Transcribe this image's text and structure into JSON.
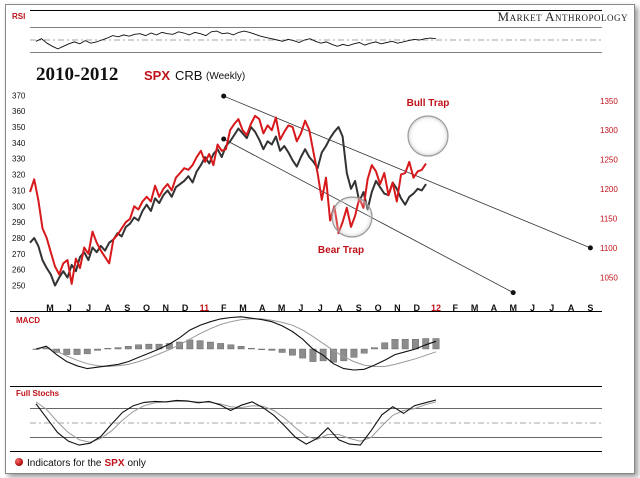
{
  "brand": "Market Anthropology",
  "title": {
    "years": "2010-2012",
    "spx": "SPX",
    "crb": "CRB",
    "period": "(Weekly)"
  },
  "panels": {
    "rsi": "RSI",
    "macd": "MACD",
    "stochs": "Full Stochs"
  },
  "annotations": {
    "bull_trap": "Bull Trap",
    "bear_trap": "Bear Trap"
  },
  "legend": {
    "prefix": "Indicators for the",
    "spx": "SPX",
    "suffix": "only"
  },
  "colors": {
    "spx": "#d7191c",
    "crb": "#333333",
    "accent_text": "#c0121a"
  },
  "chart_data": {
    "type": "line",
    "x_ticks": [
      "M",
      "J",
      "J",
      "A",
      "S",
      "O",
      "N",
      "D",
      "11",
      "F",
      "M",
      "A",
      "M",
      "J",
      "J",
      "A",
      "S",
      "O",
      "N",
      "D",
      "12",
      "F",
      "M",
      "A",
      "M",
      "J",
      "J",
      "A",
      "S"
    ],
    "red_tick_labels": [
      "11",
      "12"
    ],
    "left_axis": {
      "ticks": [
        250,
        260,
        270,
        280,
        290,
        300,
        310,
        320,
        330,
        340,
        350,
        360,
        370
      ],
      "range": [
        244,
        374
      ]
    },
    "right_axis": {
      "ticks": [
        1050,
        1100,
        1150,
        1200,
        1250,
        1300,
        1350
      ],
      "range": [
        1020,
        1370
      ]
    },
    "series": [
      {
        "name": "SPX",
        "axis": "left",
        "color": "#d7191c",
        "values": [
          309,
          317,
          304,
          286,
          280,
          271,
          262,
          257,
          264,
          266,
          251,
          267,
          261,
          274,
          270,
          284,
          277,
          272,
          268,
          264,
          279,
          282,
          286,
          290,
          292,
          300,
          298,
          303,
          306,
          303,
          313,
          306,
          311,
          314,
          310,
          318,
          321,
          324,
          323,
          326,
          331,
          335,
          328,
          333,
          326,
          339,
          335,
          336,
          348,
          352,
          355,
          348,
          345,
          352,
          357,
          355,
          346,
          351,
          348,
          356,
          342,
          347,
          351,
          350,
          341,
          346,
          354,
          348,
          334,
          321,
          304,
          318,
          291,
          300,
          283,
          290,
          299,
          287,
          294,
          305,
          299,
          317,
          326,
          322,
          314,
          321,
          307,
          315,
          303,
          320,
          321,
          328,
          318,
          322,
          323,
          327
        ]
      },
      {
        "name": "CRB",
        "axis": "left",
        "color": "#333333",
        "values": [
          277,
          280,
          275,
          266,
          261,
          257,
          250,
          255,
          259,
          255,
          263,
          259,
          268,
          271,
          266,
          274,
          271,
          275,
          272,
          277,
          279,
          283,
          281,
          287,
          289,
          293,
          291,
          297,
          301,
          297,
          305,
          302,
          307,
          310,
          306,
          312,
          314,
          316,
          319,
          315,
          322,
          326,
          331,
          327,
          333,
          336,
          331,
          338,
          341,
          345,
          349,
          346,
          343,
          350,
          347,
          342,
          336,
          341,
          339,
          344,
          335,
          338,
          334,
          329,
          325,
          331,
          336,
          331,
          328,
          324,
          334,
          338,
          343,
          347,
          350,
          344,
          321,
          311,
          316,
          303,
          309,
          298,
          309,
          316,
          312,
          308,
          307,
          315,
          311,
          305,
          301,
          306,
          308,
          311,
          310,
          314
        ]
      }
    ],
    "trend_channel": {
      "upper": {
        "from": {
          "x": "F 2011",
          "y": 1358
        },
        "to": {
          "x": "S 2012",
          "y": 1100
        }
      },
      "lower": {
        "from": {
          "x": "F 2011",
          "y": 1285
        },
        "to": {
          "x": "M 2012",
          "y": 1024
        }
      }
    },
    "rsi": {
      "levels": [
        70,
        50,
        30
      ],
      "values": [
        48,
        52,
        45,
        40,
        36,
        40,
        44,
        47,
        44,
        49,
        45,
        47,
        50,
        53,
        57,
        55,
        58,
        56,
        59,
        60,
        57,
        61,
        58,
        62,
        60,
        59,
        63,
        61,
        58,
        62,
        60,
        57,
        63,
        64,
        60,
        61,
        58,
        62,
        64,
        62,
        59,
        56,
        54,
        52,
        50,
        48,
        51,
        49,
        46,
        50,
        52,
        48,
        45,
        47,
        43,
        40,
        43,
        41,
        44,
        46,
        42,
        45,
        47,
        44,
        46,
        48,
        45,
        47,
        49,
        51,
        50,
        52,
        53,
        52
      ]
    },
    "macd": {
      "line": [
        0,
        0.4,
        -0.8,
        -1.8,
        -2.4,
        -2.8,
        -2.6,
        -2.4,
        -2.2,
        -1.8,
        -1.2,
        -0.6,
        0,
        0.7,
        1.6,
        2.7,
        3.4,
        3.9,
        4.3,
        4.5,
        4.6,
        4.4,
        4.2,
        3.9,
        3.3,
        2.5,
        1.4,
        0,
        -0.9,
        -2.1,
        -2.8,
        -3,
        -2.9,
        -2.3,
        -1.6,
        -0.8,
        -0.4,
        0,
        0.6,
        1.1
      ],
      "signal": [
        0,
        0.2,
        -0.3,
        -1,
        -1.6,
        -2.1,
        -2.4,
        -2.5,
        -2.4,
        -2.2,
        -1.8,
        -1.3,
        -0.7,
        -0.1,
        0.6,
        1.4,
        2.2,
        2.9,
        3.5,
        3.9,
        4.2,
        4.3,
        4.3,
        4.1,
        3.8,
        3.4,
        2.7,
        1.8,
        0.8,
        -0.2,
        -1.1,
        -1.8,
        -2.3,
        -2.5,
        -2.5,
        -2.2,
        -1.8,
        -1.4,
        -0.9,
        -0.4
      ],
      "histogram": [
        0,
        0.2,
        -0.5,
        -0.8,
        -0.8,
        -0.7,
        -0.2,
        0.1,
        0.2,
        0.4,
        0.6,
        0.7,
        0.7,
        0.8,
        1,
        1.3,
        1.2,
        1,
        0.8,
        0.6,
        0.4,
        0.1,
        -0.1,
        -0.2,
        -0.5,
        -0.9,
        -1.3,
        -1.8,
        -1.7,
        -1.9,
        -1.7,
        -1.2,
        -0.6,
        0.2,
        0.9,
        1.4,
        1.4,
        1.4,
        1.5,
        1.5
      ]
    },
    "stochastics": {
      "levels": [
        80,
        50,
        20
      ],
      "k": [
        90,
        60,
        30,
        12,
        4,
        8,
        22,
        48,
        72,
        86,
        93,
        95,
        94,
        97,
        96,
        92,
        95,
        88,
        76,
        87,
        94,
        82,
        66,
        44,
        20,
        6,
        18,
        40,
        15,
        6,
        4,
        34,
        67,
        84,
        70,
        86,
        92,
        98
      ],
      "d": [
        94,
        78,
        52,
        30,
        15,
        10,
        18,
        34,
        56,
        74,
        86,
        92,
        94,
        95,
        95,
        94,
        93,
        90,
        84,
        82,
        86,
        85,
        76,
        60,
        40,
        22,
        16,
        26,
        26,
        18,
        12,
        20,
        44,
        66,
        76,
        80,
        88,
        94
      ]
    }
  }
}
